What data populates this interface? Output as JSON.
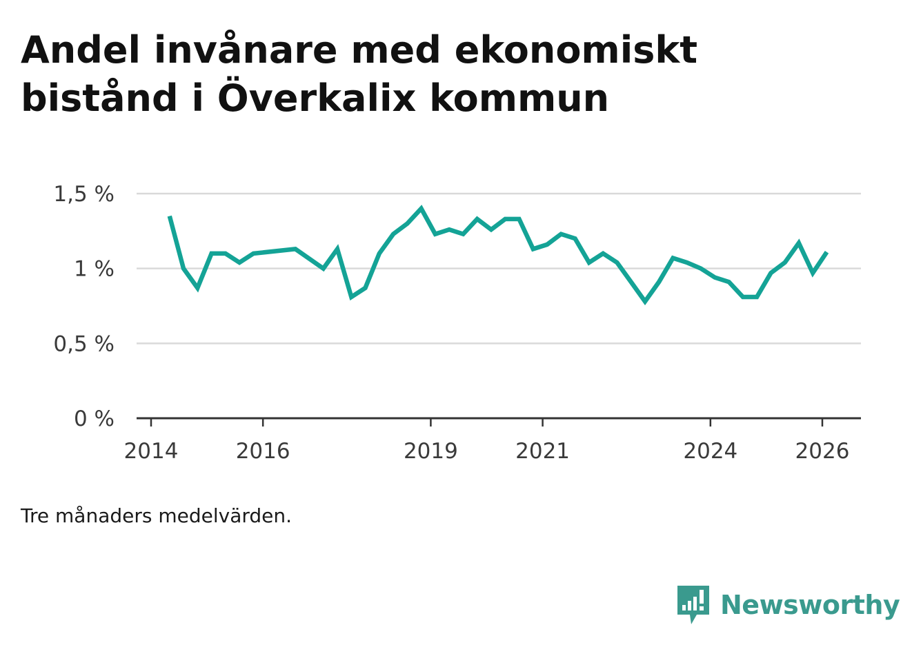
{
  "title": "Andel invånare med ekonomiskt bistånd i Överkalix kommun",
  "caption": "Tre månaders medelvärden.",
  "brand": {
    "name": "Newsworthy",
    "icon": "bar-chart-speech-bubble-icon",
    "color": "#3a9a8e"
  },
  "colors": {
    "line": "#14a396",
    "grid": "#d9d9d9",
    "axis": "#333333"
  },
  "chart_data": {
    "type": "line",
    "title": "Andel invånare med ekonomiskt bistånd i Överkalix kommun",
    "xlabel": "",
    "ylabel": "",
    "xlim": [
      2014.0,
      2026.5
    ],
    "ylim": [
      0,
      1.5
    ],
    "y_ticks": [
      {
        "value": 0,
        "label": "0 %"
      },
      {
        "value": 0.5,
        "label": "0,5 %"
      },
      {
        "value": 1,
        "label": "1 %"
      },
      {
        "value": 1.5,
        "label": "1,5 %"
      }
    ],
    "x_ticks": [
      {
        "value": 2014,
        "label": "2014"
      },
      {
        "value": 2016,
        "label": "2016"
      },
      {
        "value": 2019,
        "label": "2019"
      },
      {
        "value": 2021,
        "label": "2021"
      },
      {
        "value": 2024,
        "label": "2024"
      },
      {
        "value": 2026,
        "label": "2026"
      }
    ],
    "series": [
      {
        "name": "Andel invånare med ekonomiskt bistånd",
        "x": [
          2014.33,
          2014.58,
          2014.83,
          2015.08,
          2015.33,
          2015.58,
          2015.83,
          2016.58,
          2017.08,
          2017.33,
          2017.58,
          2017.83,
          2018.08,
          2018.33,
          2018.58,
          2018.83,
          2019.08,
          2019.33,
          2019.58,
          2019.83,
          2020.08,
          2020.33,
          2020.58,
          2020.83,
          2021.08,
          2021.33,
          2021.58,
          2021.83,
          2022.08,
          2022.33,
          2022.58,
          2022.83,
          2023.08,
          2023.33,
          2023.58,
          2023.83,
          2024.08,
          2024.33,
          2024.58,
          2024.83,
          2025.08,
          2025.33,
          2025.58,
          2025.83,
          2026.08
        ],
        "values": [
          1.35,
          1.0,
          0.87,
          1.1,
          1.1,
          1.04,
          1.1,
          1.13,
          1.0,
          1.13,
          0.81,
          0.87,
          1.1,
          1.23,
          1.3,
          1.4,
          1.23,
          1.26,
          1.23,
          1.33,
          1.26,
          1.33,
          1.33,
          1.13,
          1.16,
          1.23,
          1.2,
          1.04,
          1.1,
          1.04,
          0.91,
          0.78,
          0.91,
          1.07,
          1.04,
          1.0,
          0.94,
          0.91,
          0.81,
          0.81,
          0.97,
          1.04,
          1.17,
          0.97,
          1.11
        ]
      }
    ]
  }
}
